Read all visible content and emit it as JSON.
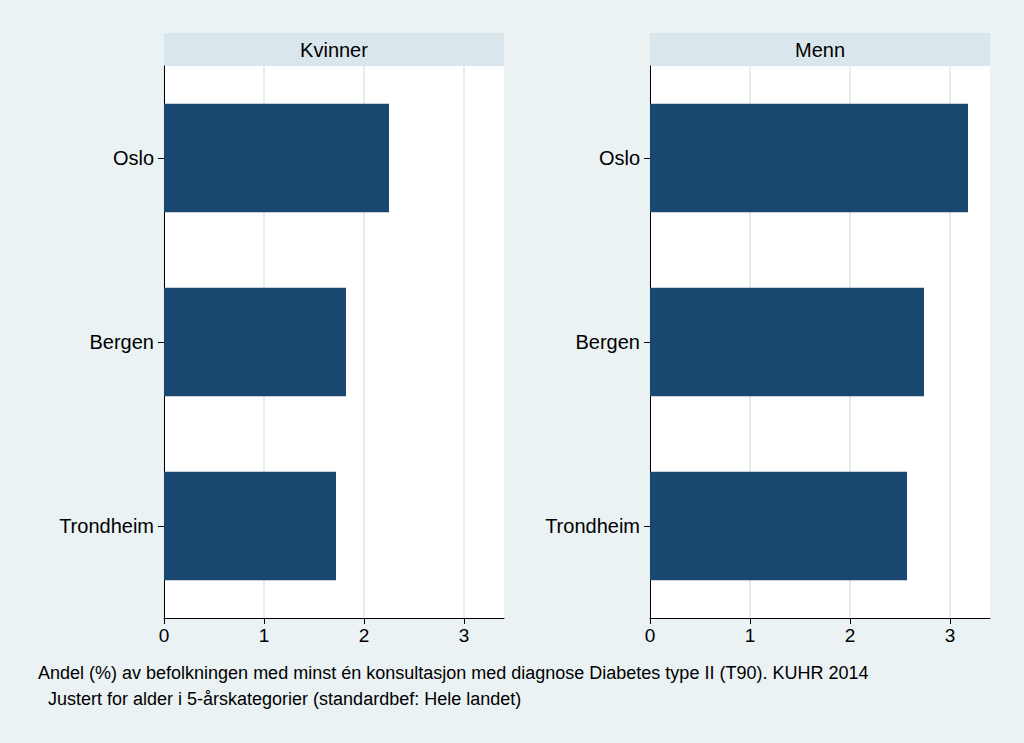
{
  "chart_data": [
    {
      "type": "bar",
      "title": "Kvinner",
      "orientation": "horizontal",
      "categories": [
        "Oslo",
        "Bergen",
        "Trondheim"
      ],
      "values": [
        2.25,
        1.82,
        1.72
      ],
      "color": "#1a476f",
      "xlim": [
        0,
        3.4
      ],
      "xticks": [
        0,
        1,
        2,
        3
      ],
      "grid": true
    },
    {
      "type": "bar",
      "title": "Menn",
      "orientation": "horizontal",
      "categories": [
        "Oslo",
        "Bergen",
        "Trondheim"
      ],
      "values": [
        3.18,
        2.74,
        2.57
      ],
      "color": "#1a476f",
      "xlim": [
        0,
        3.4
      ],
      "xticks": [
        0,
        1,
        2,
        3
      ],
      "grid": true
    }
  ],
  "caption": [
    "Andel (%) av befolkningen med minst én konsultasjon med diagnose Diabetes type II (T90). KUHR 2014",
    "Justert for alder i 5-årskategorier (standardbef: Hele landet)"
  ]
}
